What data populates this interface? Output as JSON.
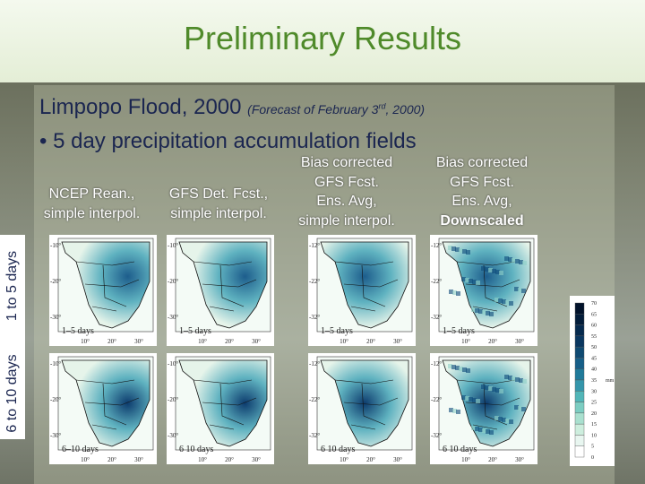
{
  "title": "Preliminary Results",
  "subtitle": {
    "main": "Limpopo Flood, 2000",
    "note_pre": "(Forecast of February 3",
    "note_sup": "rd",
    "note_post": ", 2000)"
  },
  "bullet": "5 day precipitation accumulation fields",
  "columns": [
    {
      "lines": [
        "NCEP Rean.,",
        "simple interpol."
      ]
    },
    {
      "lines": [
        "GFS Det. Fcst.,",
        "simple interpol."
      ]
    },
    {
      "lines": [
        "Bias corrected",
        "GFS Fcst.",
        "Ens. Avg,",
        "simple interpol."
      ]
    },
    {
      "lines": [
        "Bias corrected",
        "GFS Fcst.",
        "Ens. Avg,",
        "Downscaled"
      ]
    }
  ],
  "rows": [
    "1 to 5 days",
    "6 to 10 days"
  ],
  "panels": [
    {
      "label": "1–5 days",
      "lat": [
        "-10°",
        "-20°",
        "-30°"
      ],
      "lon": [
        "10°",
        "20°",
        "30°"
      ]
    },
    {
      "label": "1–5 days",
      "lat": [
        "-10°",
        "-20°",
        "-30°"
      ],
      "lon": [
        "10°",
        "20°",
        "30°"
      ]
    },
    {
      "label": "1–5 days",
      "lat": [
        "-12°",
        "-22°",
        "-32°"
      ],
      "lon": [
        "10°",
        "20°",
        "30°"
      ]
    },
    {
      "label": "1–5 days",
      "lat": [
        "-12°",
        "-22°",
        "-32°"
      ],
      "lon": [
        "10°",
        "20°",
        "30°"
      ]
    },
    {
      "label": "6–10 days",
      "lat": [
        "-10°",
        "-20°",
        "-30°"
      ],
      "lon": [
        "10°",
        "20°",
        "30°"
      ]
    },
    {
      "label": "6 10 days",
      "lat": [
        "-10°",
        "-20°",
        "-30°"
      ],
      "lon": [
        "10°",
        "20°",
        "30°"
      ]
    },
    {
      "label": "6 10 days",
      "lat": [
        "-12°",
        "-22°",
        "-32°"
      ],
      "lon": [
        "10°",
        "20°",
        "30°"
      ]
    },
    {
      "label": "6 10 days",
      "lat": [
        "-12°",
        "-22°",
        "-32°"
      ],
      "lon": [
        "10°",
        "20°",
        "30°"
      ]
    }
  ],
  "colorbar": {
    "ticks": [
      70,
      65,
      60,
      55,
      50,
      45,
      40,
      35,
      30,
      25,
      20,
      15,
      10,
      5,
      0
    ],
    "unit": "mm"
  }
}
